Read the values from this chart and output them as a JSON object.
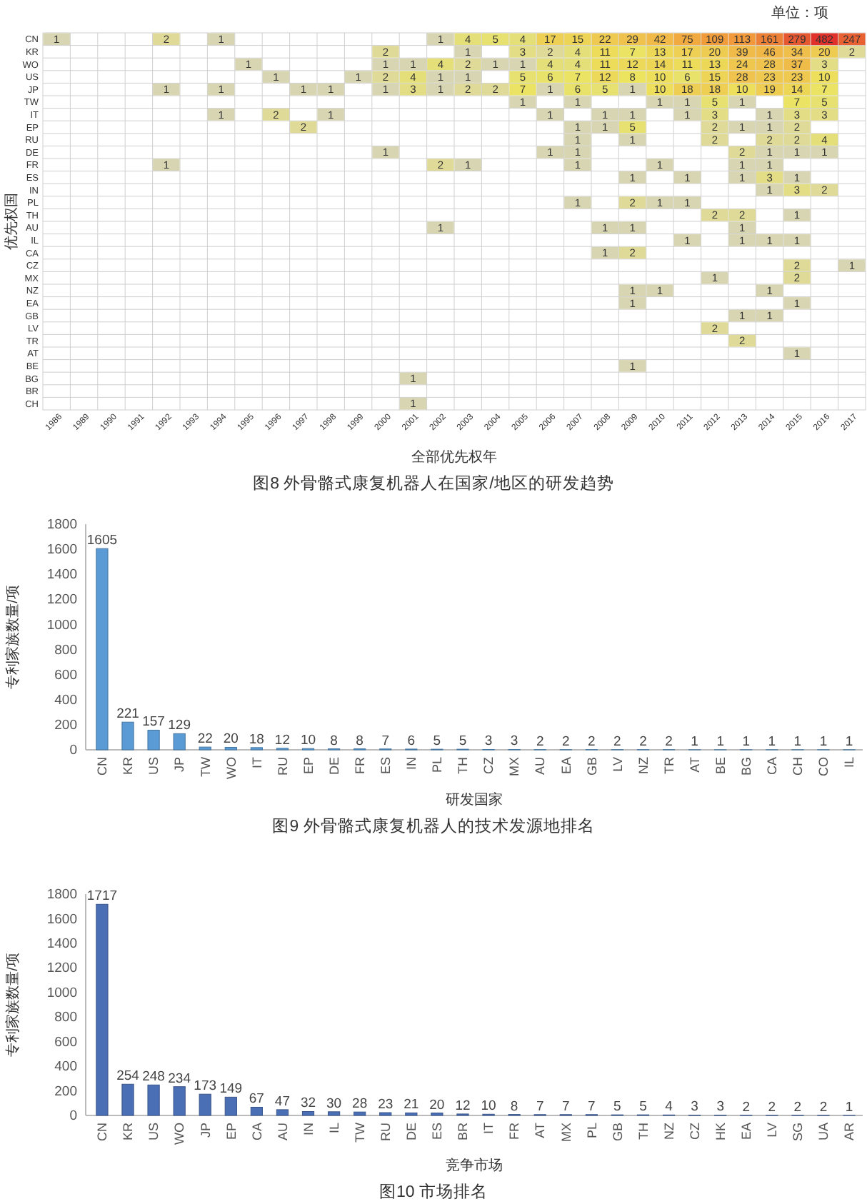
{
  "chart_data": [
    {
      "type": "heatmap",
      "title": "图8 外骨骼式康复机器人在国家/地区的研发趋势",
      "xlabel": "全部优先权年",
      "ylabel": "优先权国",
      "annotations": [
        "单位：项"
      ],
      "data_labels": true,
      "categories": [
        "1986",
        "1989",
        "1990",
        "1991",
        "1992",
        "1993",
        "1994",
        "1995",
        "1996",
        "1997",
        "1998",
        "1999",
        "2000",
        "2001",
        "2002",
        "2003",
        "2004",
        "2005",
        "2006",
        "2007",
        "2008",
        "2009",
        "2010",
        "2011",
        "2012",
        "2013",
        "2014",
        "2015",
        "2016",
        "2017"
      ],
      "y_categories": [
        "CN",
        "KR",
        "WO",
        "US",
        "JP",
        "TW",
        "IT",
        "EP",
        "RU",
        "DE",
        "FR",
        "ES",
        "IN",
        "PL",
        "TH",
        "AU",
        "IL",
        "CA",
        "CZ",
        "MX",
        "NZ",
        "EA",
        "GB",
        "LV",
        "TR",
        "AT",
        "BE",
        "BG",
        "BR",
        "CH"
      ],
      "cells": [
        [
          1,
          null,
          null,
          null,
          2,
          null,
          1,
          null,
          null,
          null,
          null,
          null,
          null,
          null,
          1,
          4,
          5,
          4,
          17,
          15,
          22,
          29,
          42,
          75,
          109,
          113,
          161,
          279,
          482,
          247
        ],
        [
          null,
          null,
          null,
          null,
          null,
          null,
          null,
          null,
          null,
          null,
          null,
          null,
          2,
          null,
          null,
          1,
          null,
          3,
          2,
          4,
          11,
          7,
          13,
          17,
          20,
          39,
          46,
          34,
          20,
          2
        ],
        [
          null,
          null,
          null,
          null,
          null,
          null,
          null,
          1,
          null,
          null,
          null,
          null,
          1,
          1,
          4,
          2,
          1,
          1,
          4,
          4,
          11,
          12,
          14,
          11,
          13,
          24,
          28,
          37,
          3,
          null
        ],
        [
          null,
          null,
          null,
          null,
          null,
          null,
          null,
          null,
          1,
          null,
          null,
          1,
          2,
          4,
          1,
          1,
          null,
          5,
          6,
          7,
          12,
          8,
          10,
          6,
          15,
          28,
          23,
          23,
          10,
          null
        ],
        [
          null,
          null,
          null,
          null,
          1,
          null,
          1,
          null,
          null,
          1,
          1,
          null,
          1,
          3,
          1,
          2,
          2,
          7,
          1,
          6,
          5,
          1,
          10,
          18,
          18,
          10,
          19,
          14,
          7,
          null
        ],
        [
          null,
          null,
          null,
          null,
          null,
          null,
          null,
          null,
          null,
          null,
          null,
          null,
          null,
          null,
          null,
          null,
          null,
          1,
          null,
          1,
          null,
          null,
          1,
          1,
          5,
          1,
          null,
          7,
          5,
          null
        ],
        [
          null,
          null,
          null,
          null,
          null,
          null,
          1,
          null,
          2,
          null,
          1,
          null,
          null,
          null,
          null,
          null,
          null,
          null,
          1,
          null,
          1,
          1,
          null,
          1,
          3,
          null,
          1,
          3,
          3,
          null
        ],
        [
          null,
          null,
          null,
          null,
          null,
          null,
          null,
          null,
          null,
          2,
          null,
          null,
          null,
          null,
          null,
          null,
          null,
          null,
          null,
          1,
          1,
          5,
          null,
          null,
          2,
          1,
          1,
          2,
          null,
          null
        ],
        [
          null,
          null,
          null,
          null,
          null,
          null,
          null,
          null,
          null,
          null,
          null,
          null,
          null,
          null,
          null,
          null,
          null,
          null,
          null,
          1,
          null,
          1,
          null,
          null,
          2,
          null,
          2,
          2,
          4,
          null
        ],
        [
          null,
          null,
          null,
          null,
          null,
          null,
          null,
          null,
          null,
          null,
          null,
          null,
          1,
          null,
          null,
          null,
          null,
          null,
          1,
          1,
          null,
          null,
          null,
          null,
          null,
          2,
          1,
          1,
          1,
          null
        ],
        [
          null,
          null,
          null,
          null,
          1,
          null,
          null,
          null,
          null,
          null,
          null,
          null,
          null,
          null,
          2,
          1,
          null,
          null,
          null,
          1,
          null,
          null,
          1,
          null,
          null,
          1,
          1,
          null,
          null,
          null
        ],
        [
          null,
          null,
          null,
          null,
          null,
          null,
          null,
          null,
          null,
          null,
          null,
          null,
          null,
          null,
          null,
          null,
          null,
          null,
          null,
          null,
          null,
          1,
          null,
          1,
          null,
          1,
          3,
          1,
          null,
          null
        ],
        [
          null,
          null,
          null,
          null,
          null,
          null,
          null,
          null,
          null,
          null,
          null,
          null,
          null,
          null,
          null,
          null,
          null,
          null,
          null,
          null,
          null,
          null,
          null,
          null,
          null,
          null,
          1,
          3,
          2,
          null
        ],
        [
          null,
          null,
          null,
          null,
          null,
          null,
          null,
          null,
          null,
          null,
          null,
          null,
          null,
          null,
          null,
          null,
          null,
          null,
          null,
          1,
          null,
          2,
          1,
          1,
          null,
          null,
          null,
          null,
          null,
          null
        ],
        [
          null,
          null,
          null,
          null,
          null,
          null,
          null,
          null,
          null,
          null,
          null,
          null,
          null,
          null,
          null,
          null,
          null,
          null,
          null,
          null,
          null,
          null,
          null,
          null,
          2,
          2,
          null,
          1,
          null,
          null
        ],
        [
          null,
          null,
          null,
          null,
          null,
          null,
          null,
          null,
          null,
          null,
          null,
          null,
          null,
          null,
          1,
          null,
          null,
          null,
          null,
          null,
          1,
          1,
          null,
          null,
          null,
          1,
          null,
          null,
          null,
          null
        ],
        [
          null,
          null,
          null,
          null,
          null,
          null,
          null,
          null,
          null,
          null,
          null,
          null,
          null,
          null,
          null,
          null,
          null,
          null,
          null,
          null,
          null,
          null,
          null,
          1,
          null,
          1,
          1,
          1,
          null,
          null
        ],
        [
          null,
          null,
          null,
          null,
          null,
          null,
          null,
          null,
          null,
          null,
          null,
          null,
          null,
          null,
          null,
          null,
          null,
          null,
          null,
          null,
          1,
          2,
          null,
          null,
          null,
          null,
          null,
          null,
          null,
          null
        ],
        [
          null,
          null,
          null,
          null,
          null,
          null,
          null,
          null,
          null,
          null,
          null,
          null,
          null,
          null,
          null,
          null,
          null,
          null,
          null,
          null,
          null,
          null,
          null,
          null,
          null,
          null,
          null,
          2,
          null,
          1
        ],
        [
          null,
          null,
          null,
          null,
          null,
          null,
          null,
          null,
          null,
          null,
          null,
          null,
          null,
          null,
          null,
          null,
          null,
          null,
          null,
          null,
          null,
          null,
          null,
          null,
          1,
          null,
          null,
          2,
          null,
          null
        ],
        [
          null,
          null,
          null,
          null,
          null,
          null,
          null,
          null,
          null,
          null,
          null,
          null,
          null,
          null,
          null,
          null,
          null,
          null,
          null,
          null,
          null,
          1,
          1,
          null,
          null,
          null,
          1,
          null,
          null,
          null
        ],
        [
          null,
          null,
          null,
          null,
          null,
          null,
          null,
          null,
          null,
          null,
          null,
          null,
          null,
          null,
          null,
          null,
          null,
          null,
          null,
          null,
          null,
          1,
          null,
          null,
          null,
          null,
          null,
          1,
          null,
          null
        ],
        [
          null,
          null,
          null,
          null,
          null,
          null,
          null,
          null,
          null,
          null,
          null,
          null,
          null,
          null,
          null,
          null,
          null,
          null,
          null,
          null,
          null,
          null,
          null,
          null,
          null,
          1,
          1,
          null,
          null,
          null
        ],
        [
          null,
          null,
          null,
          null,
          null,
          null,
          null,
          null,
          null,
          null,
          null,
          null,
          null,
          null,
          null,
          null,
          null,
          null,
          null,
          null,
          null,
          null,
          null,
          null,
          2,
          null,
          null,
          null,
          null,
          null
        ],
        [
          null,
          null,
          null,
          null,
          null,
          null,
          null,
          null,
          null,
          null,
          null,
          null,
          null,
          null,
          null,
          null,
          null,
          null,
          null,
          null,
          null,
          null,
          null,
          null,
          null,
          2,
          null,
          null,
          null,
          null
        ],
        [
          null,
          null,
          null,
          null,
          null,
          null,
          null,
          null,
          null,
          null,
          null,
          null,
          null,
          null,
          null,
          null,
          null,
          null,
          null,
          null,
          null,
          null,
          null,
          null,
          null,
          null,
          null,
          1,
          null,
          null
        ],
        [
          null,
          null,
          null,
          null,
          null,
          null,
          null,
          null,
          null,
          null,
          null,
          null,
          null,
          null,
          null,
          null,
          null,
          null,
          null,
          null,
          null,
          1,
          null,
          null,
          null,
          null,
          null,
          null,
          null,
          null
        ],
        [
          null,
          null,
          null,
          null,
          null,
          null,
          null,
          null,
          null,
          null,
          null,
          null,
          null,
          1,
          null,
          null,
          null,
          null,
          null,
          null,
          null,
          null,
          null,
          null,
          null,
          null,
          null,
          null,
          null,
          null
        ],
        [
          null,
          null,
          null,
          null,
          null,
          null,
          null,
          null,
          null,
          null,
          null,
          null,
          null,
          null,
          null,
          null,
          null,
          null,
          null,
          null,
          null,
          null,
          null,
          null,
          null,
          null,
          null,
          null,
          null,
          null
        ],
        [
          null,
          null,
          null,
          null,
          null,
          null,
          null,
          null,
          null,
          null,
          null,
          null,
          null,
          1,
          null,
          null,
          null,
          null,
          null,
          null,
          null,
          null,
          null,
          null,
          null,
          null,
          null,
          null,
          null,
          null
        ]
      ]
    },
    {
      "type": "bar",
      "title": "图9  外骨骼式康复机器人的技术发源地排名",
      "xlabel": "研发国家",
      "ylabel": "专利家族数量/项",
      "categories": [
        "CN",
        "KR",
        "US",
        "JP",
        "TW",
        "WO",
        "IT",
        "RU",
        "EP",
        "DE",
        "FR",
        "ES",
        "IN",
        "PL",
        "TH",
        "CZ",
        "MX",
        "AU",
        "EA",
        "GB",
        "LV",
        "NZ",
        "TR",
        "AT",
        "BE",
        "BG",
        "CA",
        "CH",
        "CO",
        "IL"
      ],
      "values": [
        1605,
        221,
        157,
        129,
        22,
        20,
        18,
        12,
        10,
        8,
        8,
        7,
        6,
        5,
        5,
        3,
        3,
        2,
        2,
        2,
        2,
        2,
        2,
        1,
        1,
        1,
        1,
        1,
        1,
        1
      ],
      "color": "#5b9bd5",
      "ylim": [
        0,
        1800
      ],
      "yticks": [
        0,
        200,
        400,
        600,
        800,
        1000,
        1200,
        1400,
        1600,
        1800
      ],
      "data_labels": true
    },
    {
      "type": "bar",
      "title": "图10  市场排名",
      "xlabel": "竞争市场",
      "ylabel": "专利家族数量/项",
      "categories": [
        "CN",
        "KR",
        "US",
        "WO",
        "JP",
        "EP",
        "CA",
        "AU",
        "IN",
        "IL",
        "TW",
        "RU",
        "DE",
        "ES",
        "BR",
        "IT",
        "FR",
        "AT",
        "MX",
        "PL",
        "GB",
        "TH",
        "NZ",
        "CZ",
        "HK",
        "EA",
        "LV",
        "SG",
        "UA",
        "AR"
      ],
      "values": [
        1717,
        254,
        248,
        234,
        173,
        149,
        67,
        47,
        32,
        30,
        28,
        23,
        21,
        20,
        12,
        10,
        8,
        7,
        7,
        7,
        5,
        5,
        4,
        3,
        3,
        2,
        2,
        2,
        2,
        1
      ],
      "color": "#4a6fb5",
      "ylim": [
        0,
        1800
      ],
      "yticks": [
        0,
        200,
        400,
        600,
        800,
        1000,
        1200,
        1400,
        1600,
        1800
      ],
      "data_labels": true
    }
  ]
}
